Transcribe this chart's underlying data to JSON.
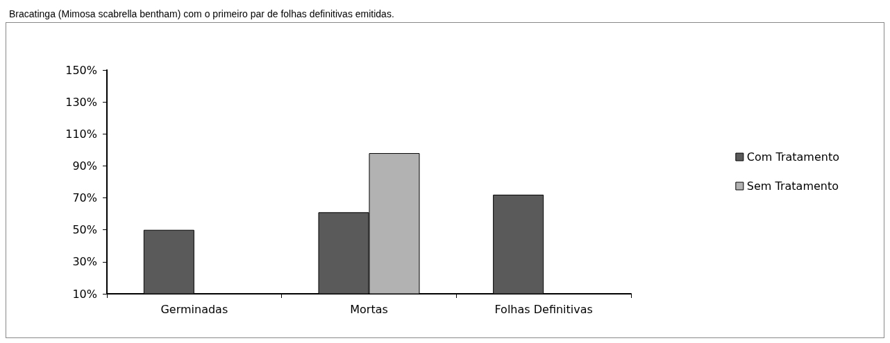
{
  "chart_data": {
    "type": "bar",
    "title": "Bracatinga (Mimosa scabrella bentham) com o primeiro par de folhas definitivas emitidas.",
    "categories": [
      "Germinadas",
      "Mortas",
      "Folhas Definitivas"
    ],
    "series": [
      {
        "name": "Com Tratamento",
        "color": "#5a5a5a",
        "values": [
          50,
          61,
          72
        ]
      },
      {
        "name": "Sem Tratamento",
        "color": "#b2b2b2",
        "values": [
          10,
          98,
          10
        ]
      }
    ],
    "ylim": [
      10,
      150
    ],
    "yticks": [
      {
        "value": 10,
        "label": "10%"
      },
      {
        "value": 30,
        "label": "30%"
      },
      {
        "value": 50,
        "label": "50%"
      },
      {
        "value": 70,
        "label": "70%"
      },
      {
        "value": 90,
        "label": "90%"
      },
      {
        "value": 110,
        "label": "110%"
      },
      {
        "value": 130,
        "label": "130%"
      },
      {
        "value": 150,
        "label": "150%"
      }
    ],
    "grid": false,
    "legend": "right"
  }
}
